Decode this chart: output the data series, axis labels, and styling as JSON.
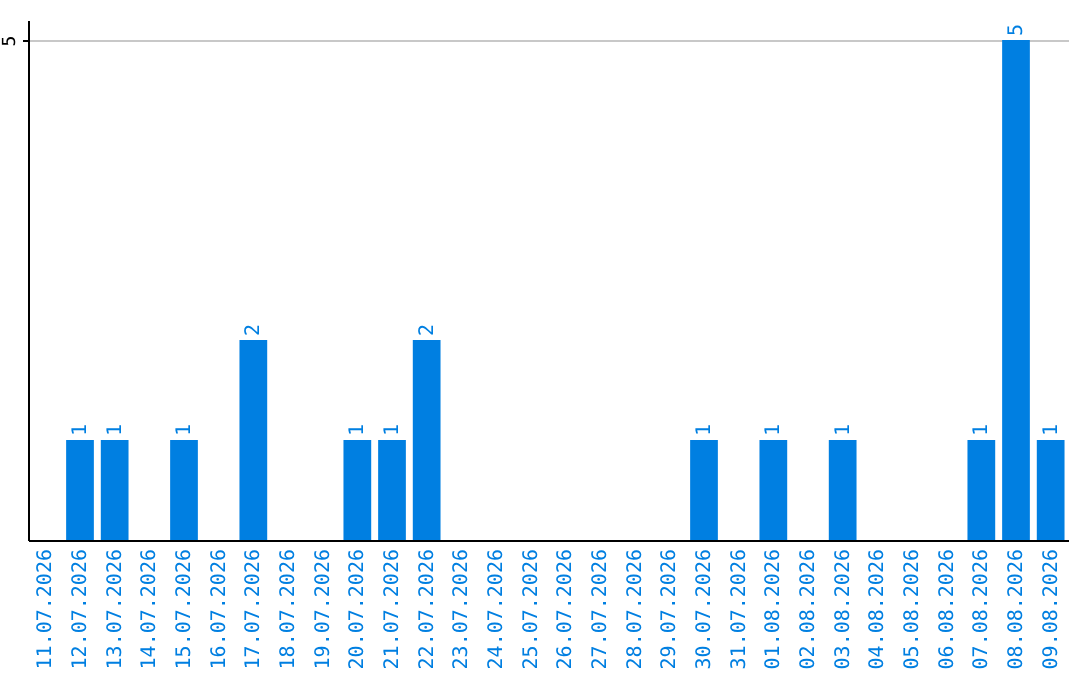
{
  "chart_data": {
    "type": "bar",
    "categories": [
      "11.07.2026",
      "12.07.2026",
      "13.07.2026",
      "14.07.2026",
      "15.07.2026",
      "16.07.2026",
      "17.07.2026",
      "18.07.2026",
      "19.07.2026",
      "20.07.2026",
      "21.07.2026",
      "22.07.2026",
      "23.07.2026",
      "24.07.2026",
      "25.07.2026",
      "26.07.2026",
      "27.07.2026",
      "28.07.2026",
      "29.07.2026",
      "30.07.2026",
      "31.07.2026",
      "01.08.2026",
      "02.08.2026",
      "03.08.2026",
      "04.08.2026",
      "05.08.2026",
      "06.08.2026",
      "07.08.2026",
      "08.08.2026",
      "09.08.2026"
    ],
    "values": [
      0,
      1,
      1,
      0,
      1,
      0,
      2,
      0,
      0,
      1,
      1,
      2,
      0,
      0,
      0,
      0,
      0,
      0,
      0,
      1,
      0,
      1,
      0,
      1,
      0,
      0,
      0,
      1,
      5,
      1
    ],
    "value_labels": [
      null,
      "1",
      "1",
      null,
      "1",
      null,
      "2",
      null,
      null,
      "1",
      "1",
      "2",
      null,
      null,
      null,
      null,
      null,
      null,
      null,
      "1",
      null,
      "1",
      null,
      "1",
      null,
      null,
      null,
      "1",
      "5",
      "1"
    ],
    "color": "#007fe1",
    "ylim": [
      0,
      5.2
    ],
    "yticks": [
      5
    ],
    "grid": "y"
  }
}
